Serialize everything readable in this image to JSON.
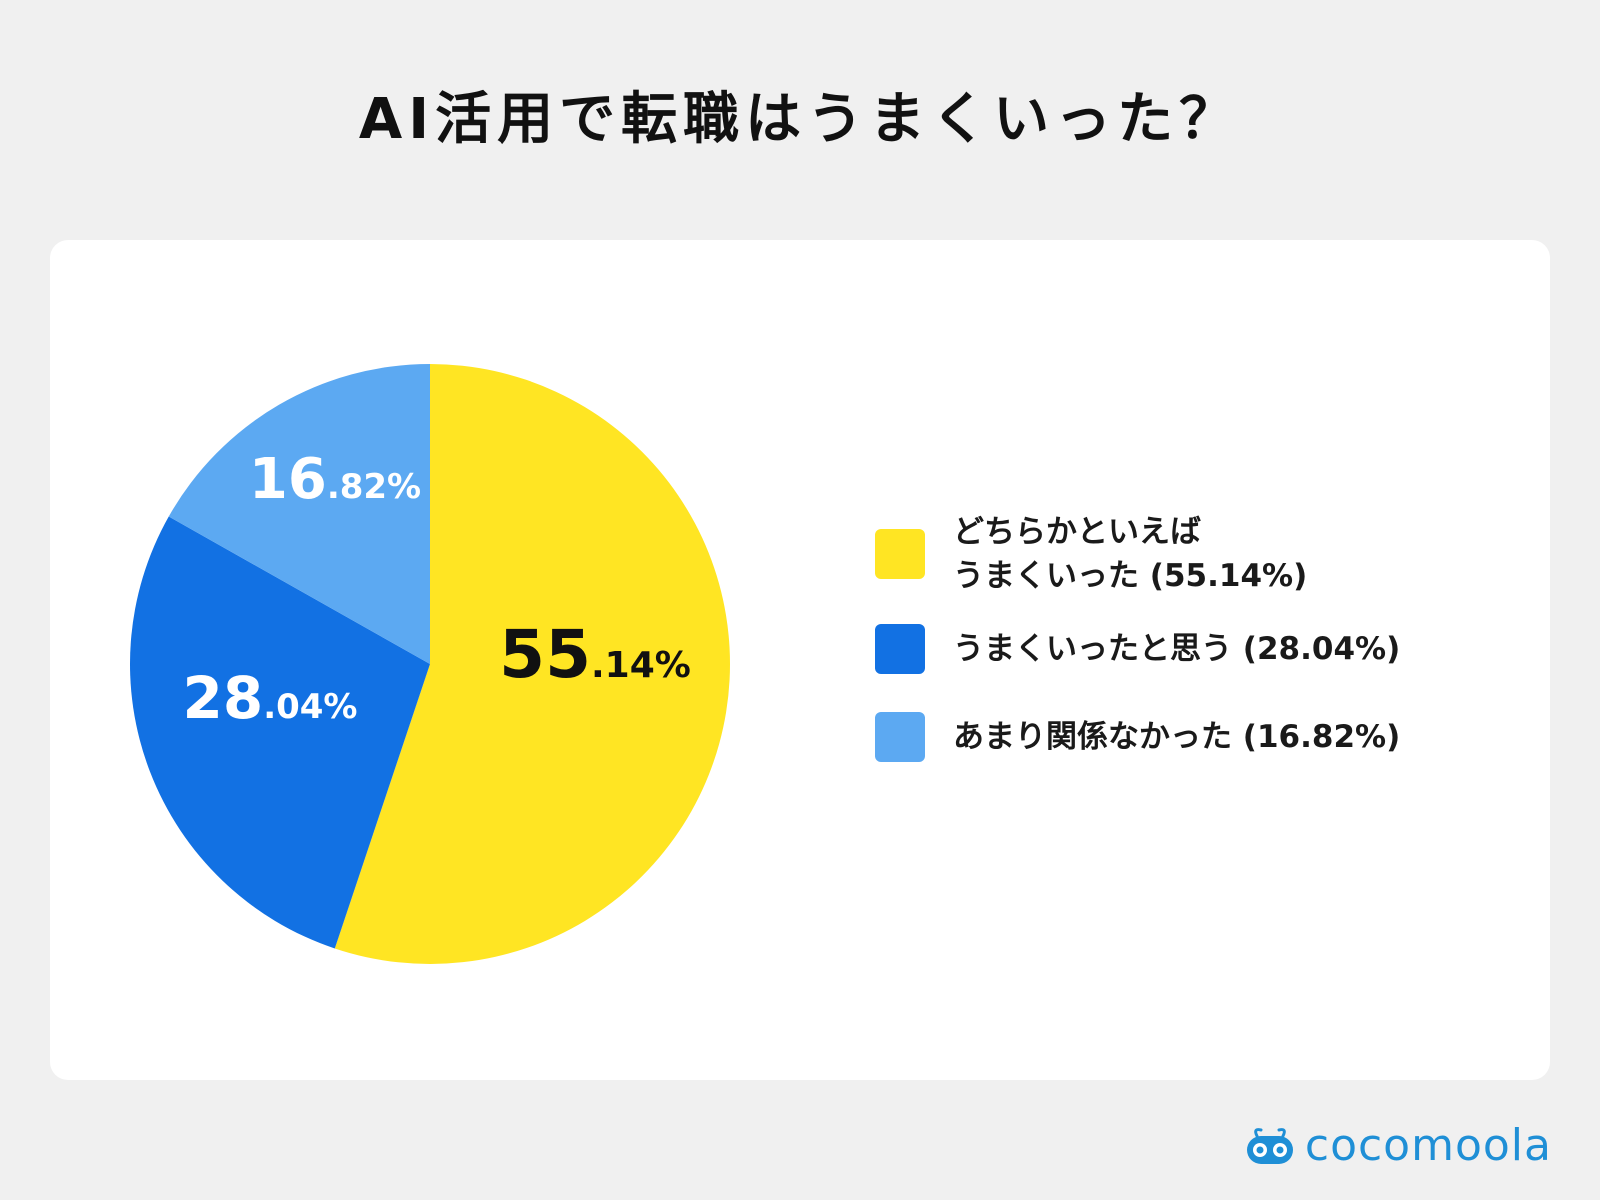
{
  "title": "AI活用で転職はうまくいった？",
  "chart_data": {
    "type": "pie",
    "title": "AI活用で転職はうまくいった？",
    "slices": [
      {
        "label": "どちらかといえばうまくいった",
        "value": 55.14,
        "value_label": "55.14%",
        "big": "55",
        "small": ".14%",
        "color": "#ffe523",
        "label_color": "#111111"
      },
      {
        "label": "うまくいったと思う",
        "value": 28.04,
        "value_label": "28.04%",
        "big": "28",
        "small": ".04%",
        "color": "#1271e3",
        "label_color": "#ffffff"
      },
      {
        "label": "あまり関係なかった",
        "value": 16.82,
        "value_label": "16.82%",
        "big": "16",
        "small": ".82%",
        "color": "#5ca9f2",
        "label_color": "#ffffff"
      }
    ],
    "legend_position": "right"
  },
  "legend": [
    {
      "lines": [
        "どちらかといえば",
        "うまくいった (55.14%)"
      ],
      "color": "#ffe523"
    },
    {
      "lines": [
        "うまくいったと思う (28.04%)"
      ],
      "color": "#1271e3"
    },
    {
      "lines": [
        "あまり関係なかった (16.82%)"
      ],
      "color": "#5ca9f2"
    }
  ],
  "brand": {
    "name": "cocomoola",
    "icon": "cocomoola-logo-icon",
    "color": "#1f8fd6"
  }
}
